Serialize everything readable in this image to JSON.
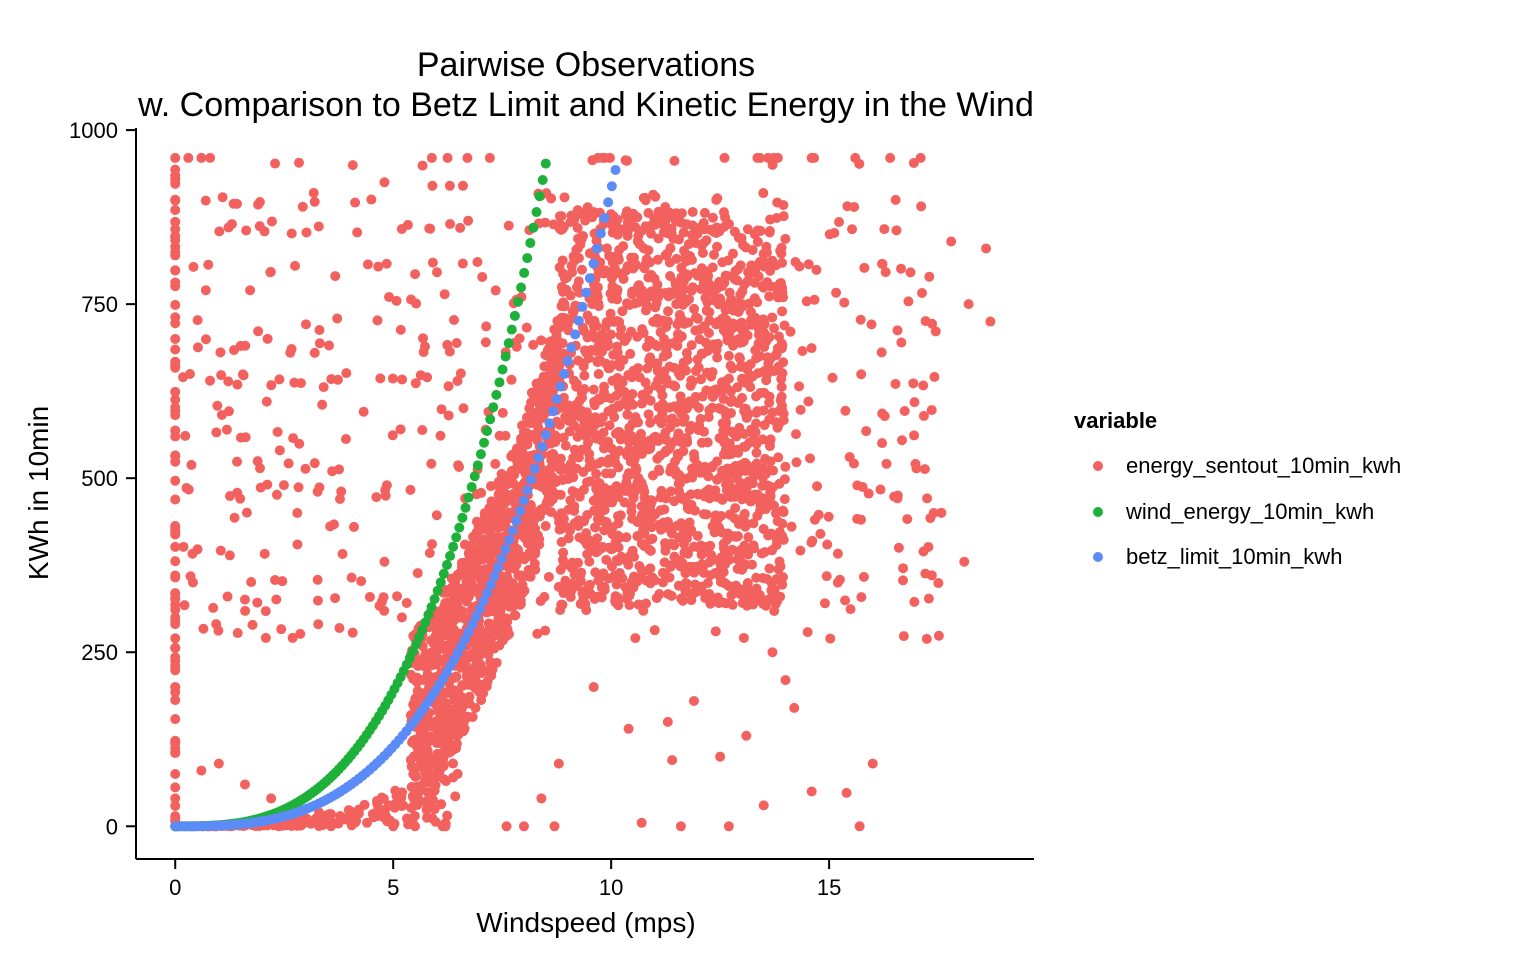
{
  "chart_data": {
    "type": "scatter",
    "title": "Pairwise Observations",
    "subtitle": "w. Comparison to Betz Limit and Kinetic Energy in the Wind",
    "xlabel": "Windspeed (mps)",
    "ylabel": "KWh in 10min",
    "xlim": [
      -0.9,
      19.7
    ],
    "ylim": [
      -47,
      1003
    ],
    "x_ticks": [
      0,
      5,
      10,
      15
    ],
    "y_ticks": [
      0,
      250,
      500,
      750,
      1000
    ],
    "grid": false,
    "legend": {
      "title": "variable",
      "position": "right"
    },
    "series": [
      {
        "name": "energy_sentout_10min_kwh",
        "color": "#F2615E",
        "points": [
          [
            0.0,
            0
          ],
          [
            0.0,
            40
          ],
          [
            0.0,
            120
          ],
          [
            0.0,
            200
          ],
          [
            0.0,
            300
          ],
          [
            0.0,
            420
          ],
          [
            0.0,
            560
          ],
          [
            0.0,
            700
          ],
          [
            0.0,
            820
          ],
          [
            0.0,
            900
          ],
          [
            0.0,
            960
          ],
          [
            0.3,
            960
          ],
          [
            0.6,
            960
          ],
          [
            0.8,
            960
          ],
          [
            1.3,
            865
          ],
          [
            1.9,
            893
          ],
          [
            3.2,
            897
          ],
          [
            4.8,
            925
          ],
          [
            5.9,
            920
          ],
          [
            6.3,
            920
          ],
          [
            6.6,
            920
          ],
          [
            3.2,
            680
          ],
          [
            2.1,
            610
          ],
          [
            1.5,
            690
          ],
          [
            2.4,
            540
          ],
          [
            3.6,
            510
          ],
          [
            4.1,
            430
          ],
          [
            4.8,
            380
          ],
          [
            5.2,
            300
          ],
          [
            2.8,
            450
          ],
          [
            1.2,
            330
          ],
          [
            0.6,
            80
          ],
          [
            1.0,
            90
          ],
          [
            1.6,
            60
          ],
          [
            2.2,
            40
          ],
          [
            2.8,
            30
          ],
          [
            3.3,
            20
          ],
          [
            3.9,
            10
          ],
          [
            4.4,
            5
          ],
          [
            5.0,
            0
          ],
          [
            5.5,
            0
          ],
          [
            6.2,
            0
          ],
          [
            7.6,
            0
          ],
          [
            8.4,
            40
          ],
          [
            8.8,
            90
          ],
          [
            9.6,
            200
          ],
          [
            10.8,
            320
          ],
          [
            11.6,
            380
          ],
          [
            12.4,
            280
          ],
          [
            13.7,
            250
          ],
          [
            14.8,
            420
          ],
          [
            15.2,
            350
          ],
          [
            16.6,
            400
          ],
          [
            17.4,
            450
          ],
          [
            18.1,
            380
          ],
          [
            18.6,
            830
          ],
          [
            18.7,
            725
          ],
          [
            18.2,
            750
          ],
          [
            17.8,
            840
          ],
          [
            17.1,
            960
          ],
          [
            16.4,
            960
          ],
          [
            15.6,
            960
          ],
          [
            14.6,
            960
          ],
          [
            13.6,
            960
          ],
          [
            12.6,
            960
          ],
          [
            15.7,
            0
          ],
          [
            15.4,
            48
          ],
          [
            16.0,
            90
          ],
          [
            14.6,
            50
          ],
          [
            13.5,
            30
          ],
          [
            12.7,
            0
          ],
          [
            11.6,
            0
          ],
          [
            10.7,
            5
          ],
          [
            8.0,
            0
          ],
          [
            8.7,
            0
          ],
          [
            10.4,
            140
          ],
          [
            11.4,
            95
          ],
          [
            12.5,
            100
          ],
          [
            13.1,
            130
          ],
          [
            14.2,
            170
          ],
          [
            14.0,
            210
          ],
          [
            11.9,
            180
          ],
          [
            11.3,
            150
          ]
        ]
      },
      {
        "name": "wind_energy_10min_kwh",
        "color": "#1DB13A",
        "curve": {
          "form": "y = 1.55 * x^3",
          "x_from": 0,
          "x_to": 8.5
        }
      },
      {
        "name": "betz_limit_10min_kwh",
        "color": "#5B8BF6",
        "curve": {
          "form": "y = 0.915 * x^3",
          "x_from": 0,
          "x_to": 10.1
        }
      }
    ]
  }
}
